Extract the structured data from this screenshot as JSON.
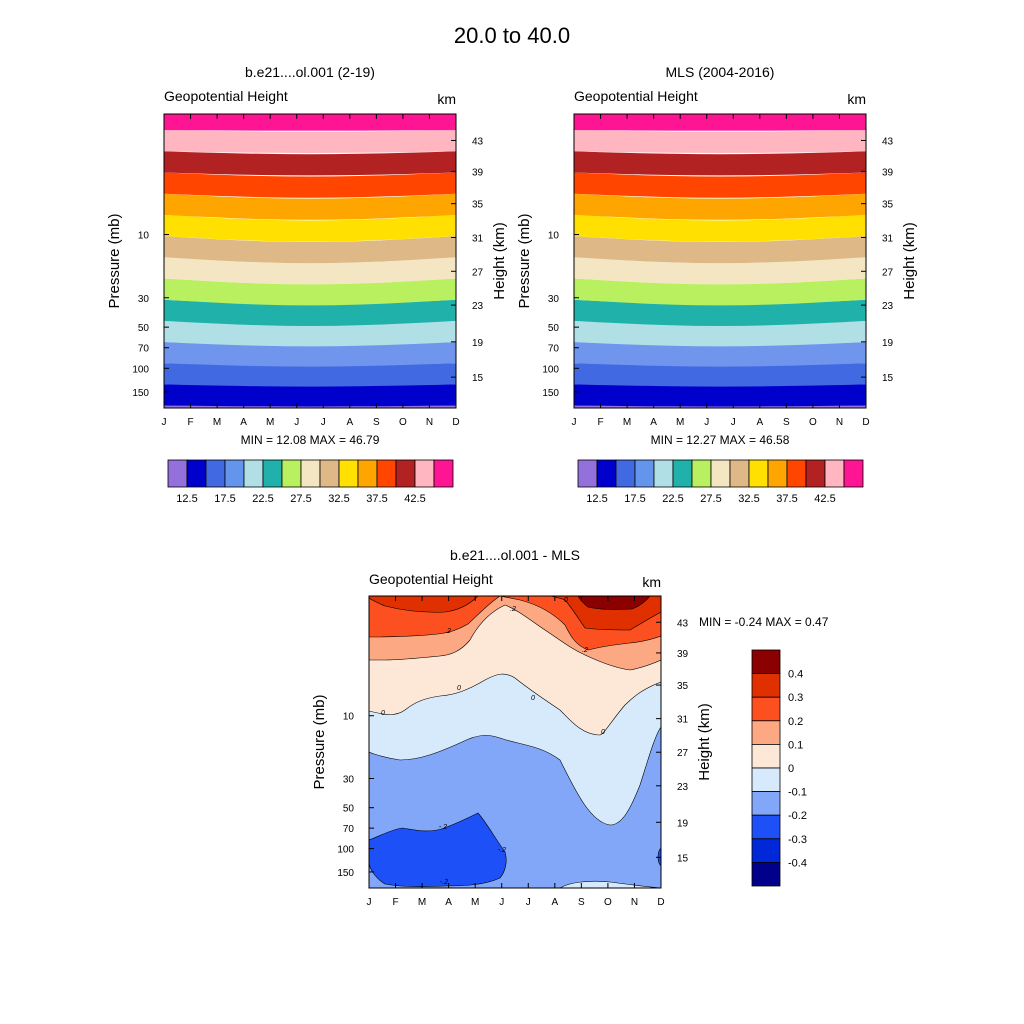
{
  "figure": {
    "title": "20.0 to  40.0"
  },
  "common": {
    "variable": "Geopotential Height",
    "units": "km",
    "ylabel": "Pressure (mb)",
    "ylabel_right": "Height (km)",
    "months": [
      "J",
      "F",
      "M",
      "A",
      "M",
      "J",
      "J",
      "A",
      "S",
      "O",
      "N",
      "D"
    ],
    "pressure_ticks": [
      "10",
      "30",
      "50",
      "70",
      "100",
      "150"
    ],
    "height_ticks": [
      "43",
      "39",
      "35",
      "31",
      "27",
      "23",
      "19",
      "15"
    ]
  },
  "chart_data": [
    {
      "id": "model",
      "type": "heatmap",
      "title": "b.e21....ol.001 (2-19)",
      "stats": "MIN =  12.08  MAX =  46.79",
      "levels": [
        12.5,
        15,
        17.5,
        20,
        22.5,
        25,
        27.5,
        30,
        32.5,
        35,
        37.5,
        40,
        42.5,
        45
      ],
      "colorbar_labels": [
        "12.5",
        "17.5",
        "22.5",
        "27.5",
        "32.5",
        "37.5",
        "42.5"
      ],
      "colors": [
        "#9370db",
        "#0000cd",
        "#4169e1",
        "#6495ed",
        "#b0e0e6",
        "#20b2aa",
        "#b8f060",
        "#f5e6c3",
        "#deb887",
        "#ffe000",
        "#ffa500",
        "#ff4500",
        "#b22222",
        "#ffb6c1",
        "#ff1493"
      ],
      "band_colors": [
        "#9370db",
        "#0000cd",
        "#4169e1",
        "#6f95ec",
        "#b0e0e6",
        "#20b2aa",
        "#b8f060",
        "#f5e6c3",
        "#deb887",
        "#ffe000",
        "#ffa500",
        "#ff4500",
        "#b22222",
        "#ffb6c1",
        "#ff1493"
      ],
      "min": 12.08,
      "max": 46.79
    },
    {
      "id": "obs",
      "type": "heatmap",
      "title": "MLS (2004-2016)",
      "stats": "MIN =  12.27  MAX =  46.58",
      "levels": [
        12.5,
        15,
        17.5,
        20,
        22.5,
        25,
        27.5,
        30,
        32.5,
        35,
        37.5,
        40,
        42.5,
        45
      ],
      "colorbar_labels": [
        "12.5",
        "17.5",
        "22.5",
        "27.5",
        "32.5",
        "37.5",
        "42.5"
      ],
      "colors": [
        "#9370db",
        "#0000cd",
        "#4169e1",
        "#6495ed",
        "#b0e0e6",
        "#20b2aa",
        "#b8f060",
        "#f5e6c3",
        "#deb887",
        "#ffe000",
        "#ffa500",
        "#ff4500",
        "#b22222",
        "#ffb6c1",
        "#ff1493"
      ],
      "band_colors": [
        "#9370db",
        "#0000cd",
        "#4169e1",
        "#6f95ec",
        "#b0e0e6",
        "#20b2aa",
        "#b8f060",
        "#f5e6c3",
        "#deb887",
        "#ffe000",
        "#ffa500",
        "#ff4500",
        "#b22222",
        "#ffb6c1",
        "#ff1493"
      ],
      "min": 12.27,
      "max": 46.58
    },
    {
      "id": "diff",
      "type": "heatmap",
      "title": "b.e21....ol.001 - MLS",
      "stats": "MIN =  -0.24  MAX =   0.47",
      "levels": [
        -0.4,
        -0.3,
        -0.2,
        -0.1,
        0,
        0.1,
        0.2,
        0.3,
        0.4
      ],
      "colorbar_labels": [
        "0.4",
        "0.3",
        "0.2",
        "0.1",
        "0",
        "-0.1",
        "-0.2",
        "-0.3",
        "-0.4"
      ],
      "colors": [
        "#00008b",
        "#0028d8",
        "#1e50f8",
        "#82a6f8",
        "#d6eafc",
        "#fde8d8",
        "#fca882",
        "#fc5020",
        "#e03000",
        "#8b0000"
      ],
      "contour_labels": [
        "-.2",
        "-.2",
        "-.2",
        ".2",
        ".2",
        ".2",
        "0",
        "0",
        "0",
        "0",
        "0"
      ],
      "min": -0.24,
      "max": 0.47
    }
  ]
}
